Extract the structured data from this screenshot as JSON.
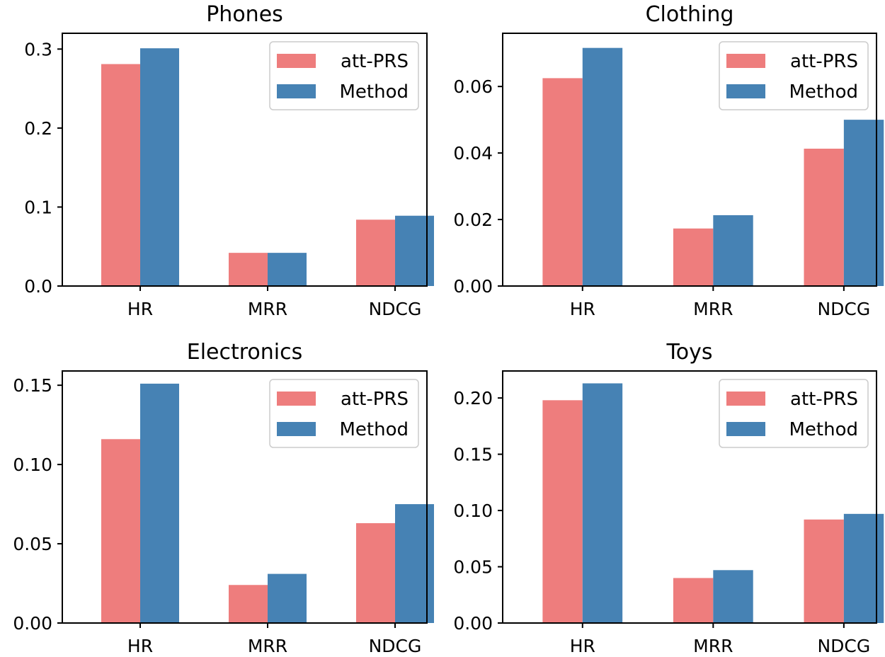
{
  "chart_data": [
    {
      "type": "bar",
      "title": "Phones",
      "categories": [
        "HR",
        "MRR",
        "NDCG"
      ],
      "series": [
        {
          "name": "att-PRS",
          "values": [
            0.281,
            0.042,
            0.084
          ]
        },
        {
          "name": "Method",
          "values": [
            0.301,
            0.042,
            0.089
          ]
        }
      ],
      "ylim": [
        0,
        0.32
      ],
      "yticks": [
        0.0,
        0.1,
        0.2,
        0.3
      ],
      "ytick_labels": [
        "0.0",
        "0.1",
        "0.2",
        "0.3"
      ],
      "xlabel": "",
      "ylabel": "",
      "legend": "top-right",
      "grid": false
    },
    {
      "type": "bar",
      "title": "Clothing",
      "categories": [
        "HR",
        "MRR",
        "NDCG"
      ],
      "series": [
        {
          "name": "att-PRS",
          "values": [
            0.0625,
            0.0173,
            0.0413
          ]
        },
        {
          "name": "Method",
          "values": [
            0.0716,
            0.0213,
            0.05
          ]
        }
      ],
      "ylim": [
        0,
        0.076
      ],
      "yticks": [
        0.0,
        0.02,
        0.04,
        0.06
      ],
      "ytick_labels": [
        "0.00",
        "0.02",
        "0.04",
        "0.06"
      ],
      "xlabel": "",
      "ylabel": "",
      "legend": "top-right",
      "grid": false
    },
    {
      "type": "bar",
      "title": "Electronics",
      "categories": [
        "HR",
        "MRR",
        "NDCG"
      ],
      "series": [
        {
          "name": "att-PRS",
          "values": [
            0.116,
            0.024,
            0.063
          ]
        },
        {
          "name": "Method",
          "values": [
            0.151,
            0.031,
            0.075
          ]
        }
      ],
      "ylim": [
        0,
        0.159
      ],
      "yticks": [
        0.0,
        0.05,
        0.1,
        0.15
      ],
      "ytick_labels": [
        "0.00",
        "0.05",
        "0.10",
        "0.15"
      ],
      "xlabel": "",
      "ylabel": "",
      "legend": "top-right",
      "grid": false
    },
    {
      "type": "bar",
      "title": "Toys",
      "categories": [
        "HR",
        "MRR",
        "NDCG"
      ],
      "series": [
        {
          "name": "att-PRS",
          "values": [
            0.198,
            0.04,
            0.092
          ]
        },
        {
          "name": "Method",
          "values": [
            0.213,
            0.047,
            0.097
          ]
        }
      ],
      "ylim": [
        0,
        0.224
      ],
      "yticks": [
        0.0,
        0.05,
        0.1,
        0.15,
        0.2
      ],
      "ytick_labels": [
        "0.00",
        "0.05",
        "0.10",
        "0.15",
        "0.20"
      ],
      "xlabel": "",
      "ylabel": "",
      "legend": "top-right",
      "grid": false
    }
  ],
  "colors": {
    "att-PRS": "#ee7d7d",
    "Method": "#4682b4"
  }
}
